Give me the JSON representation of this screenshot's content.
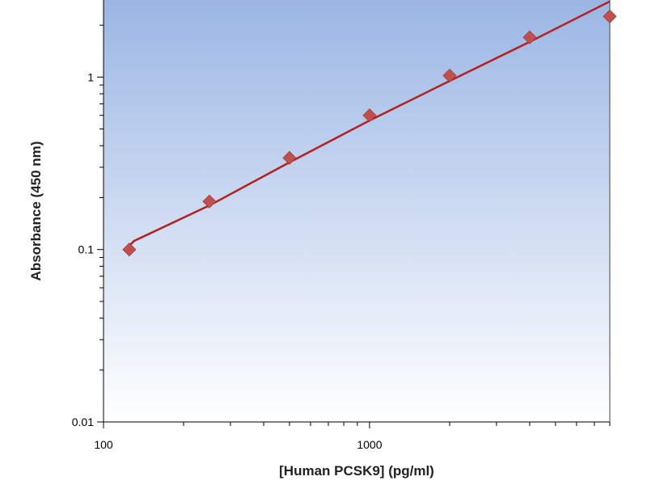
{
  "chart_data": {
    "type": "scatter",
    "xlabel": "[Human PCSK9] (pg/ml)",
    "ylabel": "Absorbance (450 nm)",
    "x_scale": "log",
    "y_scale": "log",
    "xlim": [
      100,
      8000
    ],
    "ylim": [
      0.01,
      2.8
    ],
    "x_tick_labels": [
      {
        "value": 100,
        "label": "100"
      },
      {
        "value": 1000,
        "label": "1000"
      }
    ],
    "y_tick_labels": [
      {
        "value": 0.01,
        "label": "0.01"
      },
      {
        "value": 0.1,
        "label": "0.1"
      },
      {
        "value": 1,
        "label": "1"
      }
    ],
    "grid": false,
    "legend": "none",
    "series": [
      {
        "type": "scatter",
        "x": [
          125,
          250,
          500,
          1000,
          2000,
          4000,
          8000
        ],
        "y": [
          0.1,
          0.19,
          0.34,
          0.6,
          1.02,
          1.7,
          2.25
        ],
        "color": "#c0504d",
        "marker": "diamond"
      },
      {
        "type": "line",
        "x": [
          125,
          130,
          250,
          500,
          1000,
          2000,
          4000,
          8000
        ],
        "y": [
          0.105,
          0.112,
          0.18,
          0.32,
          0.56,
          0.95,
          1.6,
          2.75
        ],
        "color": "#b22222"
      }
    ],
    "plot_background": [
      "#ffffff",
      "#9bb6e4"
    ]
  }
}
